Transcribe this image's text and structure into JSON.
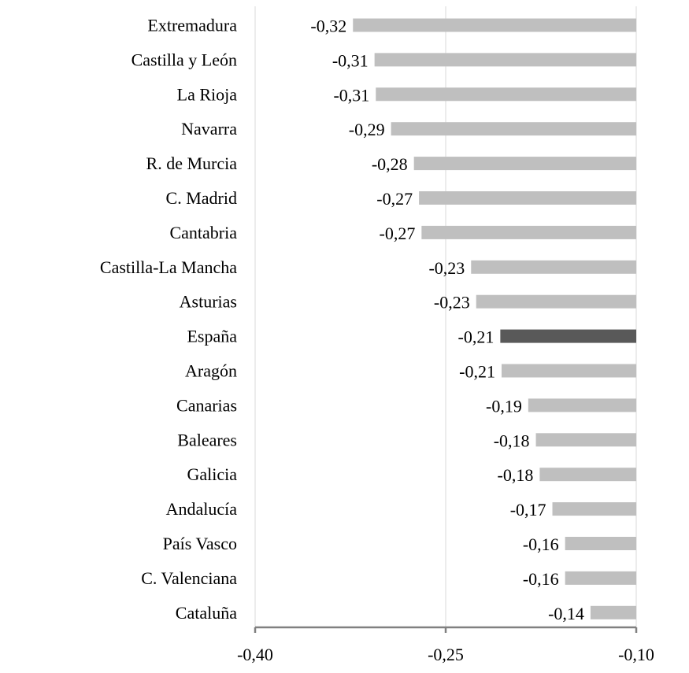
{
  "chart_data": {
    "type": "bar",
    "orientation": "horizontal",
    "title": "",
    "xlabel": "",
    "ylabel": "",
    "xlim": [
      -0.4,
      -0.1
    ],
    "x_ticks": [
      -0.4,
      -0.25,
      -0.1
    ],
    "x_tick_labels": [
      "-0,40",
      "-0,25",
      "-0,10"
    ],
    "grid": true,
    "categories": [
      "Extremadura",
      "Castilla y León",
      "La Rioja",
      "Navarra",
      "R. de Murcia",
      "C. Madrid",
      "Cantabria",
      "Castilla-La Mancha",
      "Asturias",
      "España",
      "Aragón",
      "Canarias",
      "Baleares",
      "Galicia",
      "Andalucía",
      "País Vasco",
      "C. Valenciana",
      "Cataluña"
    ],
    "values": [
      -0.323,
      -0.306,
      -0.305,
      -0.293,
      -0.275,
      -0.271,
      -0.269,
      -0.23,
      -0.226,
      -0.207,
      -0.206,
      -0.185,
      -0.179,
      -0.176,
      -0.166,
      -0.156,
      -0.156,
      -0.136
    ],
    "data_labels": [
      "-0,32",
      "-0,31",
      "-0,31",
      "-0,29",
      "-0,28",
      "-0,27",
      "-0,27",
      "-0,23",
      "-0,23",
      "-0,21",
      "-0,21",
      "-0,19",
      "-0,18",
      "-0,18",
      "-0,17",
      "-0,16",
      "-0,16",
      "-0,14"
    ],
    "highlight": "España",
    "colors": {
      "bar": "#bfbfbf",
      "highlight": "#595959",
      "grid": "#d9d9d9",
      "axis": "#808080"
    }
  }
}
